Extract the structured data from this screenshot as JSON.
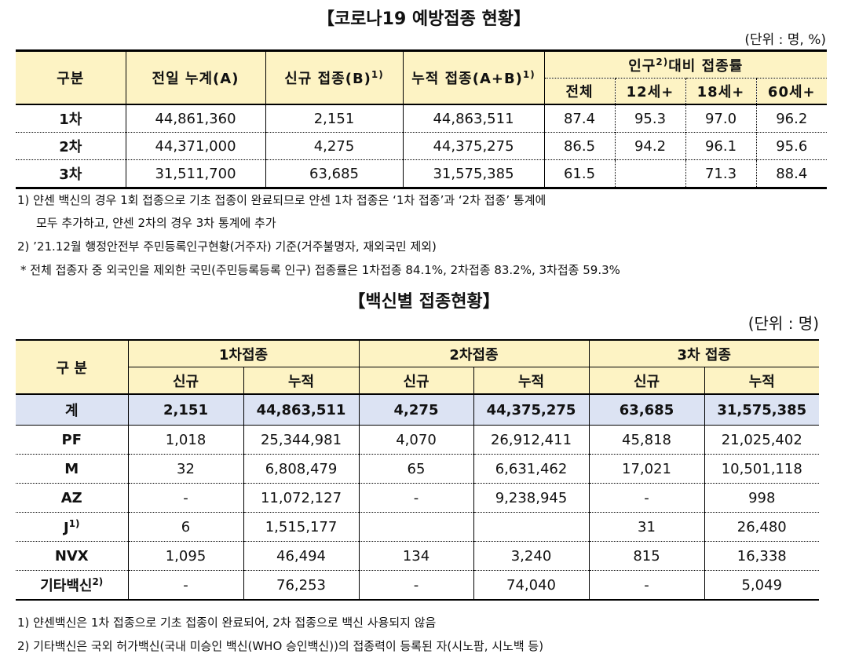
{
  "table1": {
    "title": "【코로나19 예방접종 현황】",
    "unit": "(단위 : 명, %)",
    "header": {
      "col0": "구분",
      "col1": "전일 누계(A)",
      "col2": "신규 접종(B)",
      "col2_sup": "1)",
      "col3": "누적 접종(A+B)",
      "col3_sup": "1)",
      "group": "인구",
      "group_sup": "2)",
      "group_rest": "대비 접종률",
      "sub": [
        "전체",
        "12세+",
        "18세+",
        "60세+"
      ]
    },
    "rows": [
      [
        "1차",
        "44,861,360",
        "2,151",
        "44,863,511",
        "87.4",
        "95.3",
        "97.0",
        "96.2"
      ],
      [
        "2차",
        "44,371,000",
        "4,275",
        "44,375,275",
        "86.5",
        "94.2",
        "96.1",
        "95.6"
      ],
      [
        "3차",
        "31,511,700",
        "63,685",
        "31,575,385",
        "61.5",
        null,
        "71.3",
        "88.4"
      ]
    ],
    "notes": [
      "1) 얀센 백신의 경우 1회 접종으로 기초 접종이 완료되므로 얀센 1차 접종은 ‘1차 접종’과 ‘2차 접종’ 통계에",
      "모두 추가하고, 얀센 2차의 경우 3차 통계에 추가",
      "2) ’21.12월 행정안전부 주민등록인구현황(거주자) 기준(거주불명자, 재외국민 제외)",
      "* 전체 접종자 중 외국인을 제외한 국민(주민등록등록 인구) 접종률은 1차접종 84.1%, 2차접종 83.2%, 3차접종 59.3%"
    ]
  },
  "table2": {
    "title": "【백신별 접종현황】",
    "unit": "(단위 : 명)",
    "header": {
      "col0": "구 분",
      "groups": [
        "1차접종",
        "2차접종",
        "3차 접종"
      ],
      "sub": [
        "신규",
        "누적",
        "신규",
        "누적",
        "신규",
        "누적"
      ]
    },
    "rows": [
      {
        "label": "계",
        "values": [
          "2,151",
          "44,863,511",
          "4,275",
          "44,375,275",
          "63,685",
          "31,575,385"
        ]
      },
      {
        "label": "PF",
        "values": [
          "1,018",
          "25,344,981",
          "4,070",
          "26,912,411",
          "45,818",
          "21,025,402"
        ]
      },
      {
        "label": "M",
        "values": [
          "32",
          "6,808,479",
          "65",
          "6,631,462",
          "17,021",
          "10,501,118"
        ]
      },
      {
        "label": "AZ",
        "values": [
          "-",
          "11,072,127",
          "-",
          "9,238,945",
          "-",
          "998"
        ]
      },
      {
        "label": "J",
        "sup": "1)",
        "values": [
          "6",
          "1,515,177",
          null,
          null,
          "31",
          "26,480"
        ]
      },
      {
        "label": "NVX",
        "values": [
          "1,095",
          "46,494",
          "134",
          "3,240",
          "815",
          "16,338"
        ]
      },
      {
        "label": "기타백신",
        "sup": "2)",
        "values": [
          "-",
          "76,253",
          "-",
          "74,040",
          "-",
          "5,049"
        ]
      }
    ],
    "notes": [
      "1) 얀센백신은 1차 접종으로 기초 접종이 완료되어, 2차 접종으로 백신 사용되지 않음",
      "2) 기타백신은 국외 허가백신(국내 미승인 백신(WHO 승인백신))의 접종력이 등록된 자(시노팜, 시노백 등)"
    ]
  }
}
